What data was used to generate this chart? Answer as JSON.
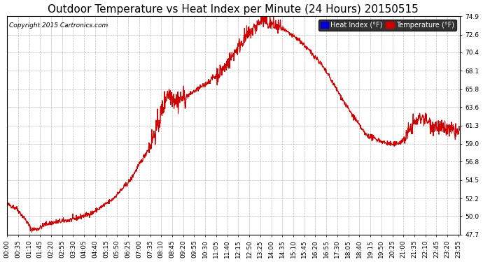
{
  "title": "Outdoor Temperature vs Heat Index per Minute (24 Hours) 20150515",
  "copyright": "Copyright 2015 Cartronics.com",
  "legend_heat_index": "Heat Index (°F)",
  "legend_temperature": "Temperature (°F)",
  "ylim_min": 47.7,
  "ylim_max": 74.9,
  "yticks": [
    47.7,
    50.0,
    52.2,
    54.5,
    56.8,
    59.0,
    61.3,
    63.6,
    65.8,
    68.1,
    70.4,
    72.6,
    74.9
  ],
  "line_color": "#cc0000",
  "background_color": "#ffffff",
  "grid_color": "#aaaaaa",
  "title_fontsize": 11,
  "tick_fontsize": 6.5,
  "xtick_interval": 35,
  "legend_heat_color": "#0000cc",
  "legend_temp_color": "#cc0000",
  "legend_text_color": "#ffffff",
  "legend_bg_color": "#000000"
}
